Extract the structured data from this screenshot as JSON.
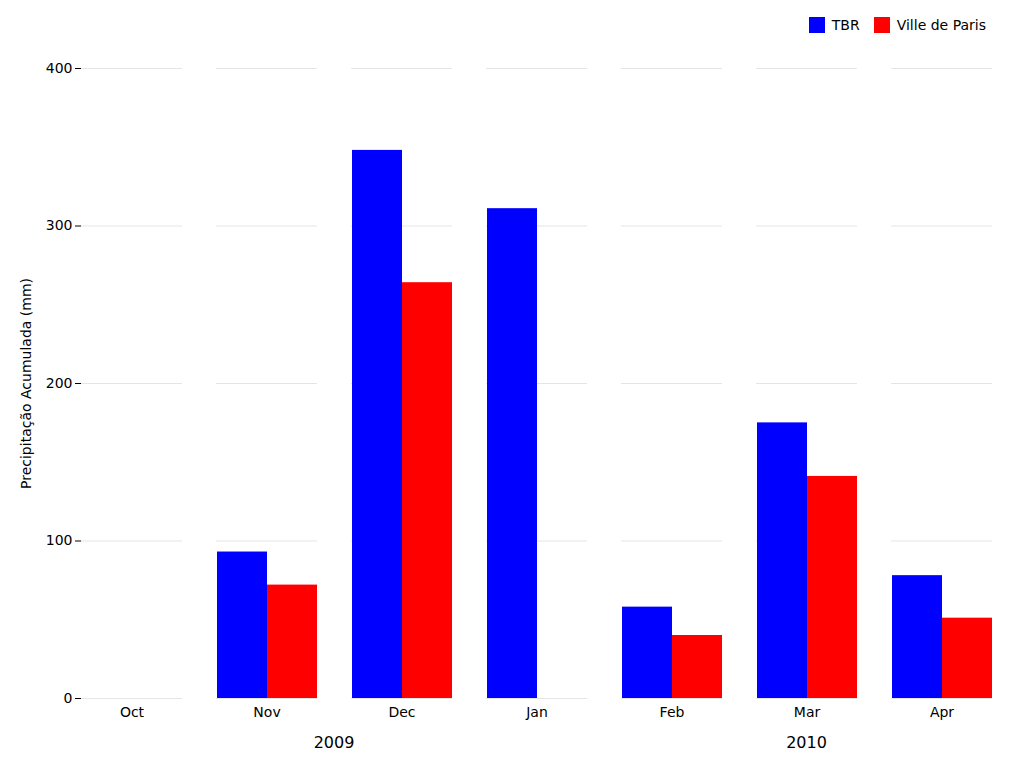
{
  "chart_data": {
    "type": "bar",
    "categories": [
      "Oct",
      "Nov",
      "Dec",
      "Jan",
      "Feb",
      "Mar",
      "Apr"
    ],
    "series": [
      {
        "name": "TBR",
        "color": "#0000FF",
        "values": [
          null,
          93,
          348,
          311,
          58,
          175,
          78
        ]
      },
      {
        "name": "Ville de Paris",
        "color": "#FF0000",
        "values": [
          null,
          72,
          264,
          null,
          40,
          141,
          51
        ]
      }
    ],
    "ylabel": "Precipitação Acumulada (mm)",
    "ylim": [
      0,
      400
    ],
    "yticks": [
      0,
      100,
      200,
      300,
      400
    ],
    "grid": true,
    "legend": "upper right",
    "annotations": [
      "2009",
      "2010"
    ]
  }
}
